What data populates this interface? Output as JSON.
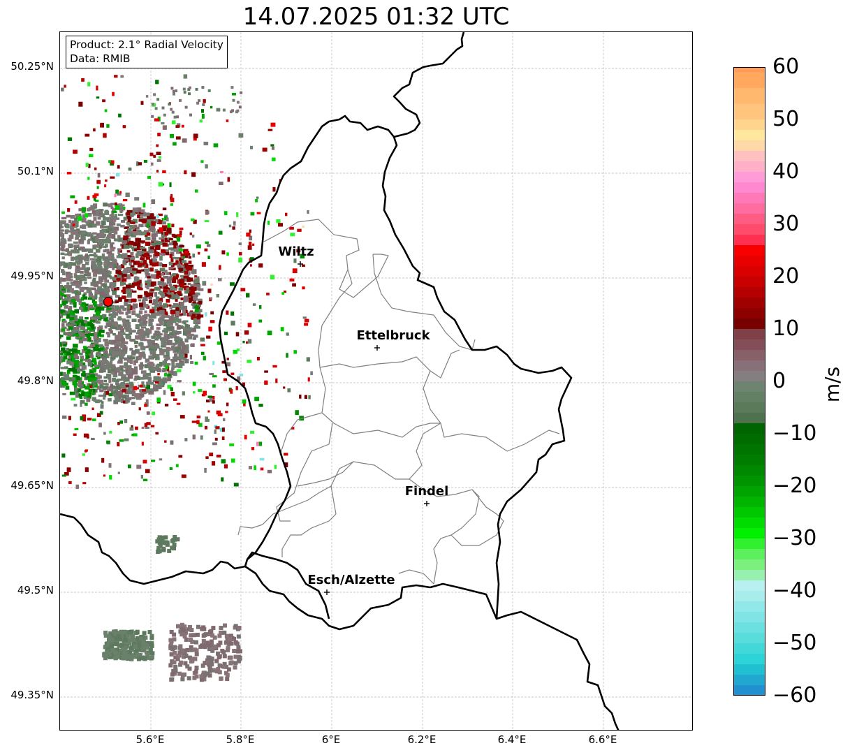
{
  "title": "14.07.2025 01:32 UTC",
  "info_box": {
    "line1": "Product: 2.1° Radial Velocity",
    "line2": "Data: RMIB"
  },
  "axes": {
    "lat_ticks": [
      "50.25°N",
      "50.1°N",
      "49.95°N",
      "49.8°N",
      "49.65°N",
      "49.5°N",
      "49.35°N"
    ],
    "lon_ticks": [
      "5.6°E",
      "5.8°E",
      "6°E",
      "6.2°E",
      "6.4°E",
      "6.6°E"
    ]
  },
  "cities": [
    {
      "name": "Wiltz"
    },
    {
      "name": "Ettelbruck"
    },
    {
      "name": "Findel"
    },
    {
      "name": "Esch/Alzette"
    }
  ],
  "colorbar": {
    "ticks": [
      "60",
      "50",
      "40",
      "30",
      "20",
      "10",
      "0",
      "−10",
      "−20",
      "−30",
      "−40",
      "−50",
      "−60"
    ],
    "unit": "m/s",
    "range": [
      -60,
      60
    ]
  },
  "colors": {
    "radar_site": "#ff0000",
    "country_border": "#000000",
    "admin_border": "#808080",
    "grid": "#b0b0b0"
  }
}
